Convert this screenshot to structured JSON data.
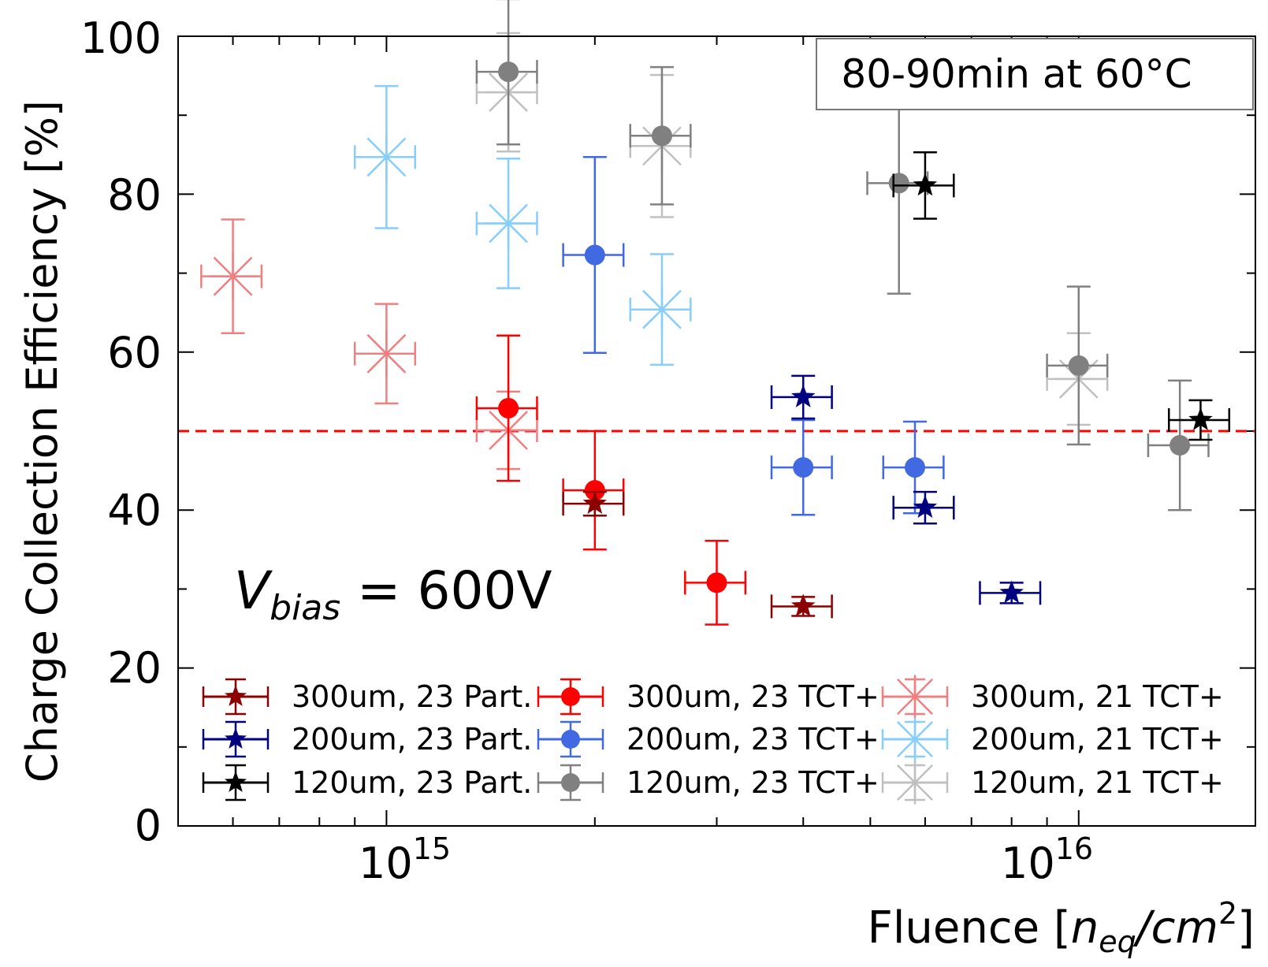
{
  "chart_data": {
    "type": "scatter",
    "xscale": "log",
    "xlim": [
      500000000000000.0,
      1.8e+16
    ],
    "ylim": [
      0,
      100
    ],
    "xlabel": "Fluence [n_eq/cm^2]",
    "xlabel_parts": {
      "prefix": "Fluence [",
      "n": "n",
      "n_sub": "eq",
      "slash": "/",
      "cm": "cm",
      "cm_sup": "2",
      "suffix": "]"
    },
    "ylabel": "Charge Collection Efficiency [%]",
    "yticks": [
      0,
      20,
      40,
      60,
      80,
      100
    ],
    "ytick_labels": [
      "0",
      "20",
      "40",
      "60",
      "80",
      "100"
    ],
    "xtick_labels": [
      {
        "value": 1000000000000000.0,
        "base": "10",
        "exp": "15"
      },
      {
        "value": 1e+16,
        "base": "10",
        "exp": "16"
      }
    ],
    "reference_line": {
      "y": 50,
      "color": "#ff0000",
      "style": "dashed"
    },
    "annotation_box": "80-90min at 60°C",
    "bias_label": {
      "v": "V",
      "sub": "bias",
      "rest": " = 600V"
    },
    "series": [
      {
        "name": "300um, 23 Part.",
        "color": "#8b0000",
        "marker": "star",
        "points": [
          {
            "x": 2000000000000000.0,
            "y": 40.8,
            "xerr": 0.1,
            "yerr": 1.5
          },
          {
            "x": 4000000000000000.0,
            "y": 27.8,
            "xerr": 0.1,
            "yerr": 1.2
          }
        ]
      },
      {
        "name": "200um, 23 Part.",
        "color": "#000080",
        "marker": "star",
        "points": [
          {
            "x": 4000000000000000.0,
            "y": 54.3,
            "xerr": 0.1,
            "yerr": 2.7
          },
          {
            "x": 6000000000000000.0,
            "y": 40.3,
            "xerr": 0.1,
            "yerr": 2.0
          },
          {
            "x": 8000000000000000.0,
            "y": 29.5,
            "xerr": 0.1,
            "yerr": 1.3
          }
        ]
      },
      {
        "name": "120um, 23 Part.",
        "color": "#000000",
        "marker": "star",
        "points": [
          {
            "x": 6000000000000000.0,
            "y": 81.1,
            "xerr": 0.1,
            "yerr": 4.2
          },
          {
            "x": 1.5e+16,
            "y": 51.4,
            "xerr": 0.1,
            "yerr": 2.5
          }
        ]
      },
      {
        "name": "300um, 23 TCT+",
        "color": "#ff0000",
        "marker": "circle",
        "points": [
          {
            "x": 1500000000000000.0,
            "y": 52.9,
            "xerr": 0.1,
            "yerr": 9.2
          },
          {
            "x": 2000000000000000.0,
            "y": 42.5,
            "xerr": 0.1,
            "yerr": 7.5
          },
          {
            "x": 3000000000000000.0,
            "y": 30.8,
            "xerr": 0.1,
            "yerr": 5.3
          }
        ]
      },
      {
        "name": "200um, 23 TCT+",
        "color": "#4169e1",
        "marker": "circle",
        "points": [
          {
            "x": 2000000000000000.0,
            "y": 72.3,
            "xerr": 0.1,
            "yerr": 12.4
          },
          {
            "x": 4000000000000000.0,
            "y": 45.4,
            "xerr": 0.1,
            "yerr": 6.0
          },
          {
            "x": 5800000000000000.0,
            "y": 45.4,
            "xerr": 0.1,
            "yerr": 5.8
          }
        ]
      },
      {
        "name": "120um, 23 TCT+",
        "color": "#808080",
        "marker": "circle",
        "points": [
          {
            "x": 1500000000000000.0,
            "y": 95.5,
            "xerr": 0.1,
            "yerr": 9.2
          },
          {
            "x": 2500000000000000.0,
            "y": 87.4,
            "xerr": 0.1,
            "yerr": 8.7
          },
          {
            "x": 5500000000000000.0,
            "y": 81.4,
            "xerr": 0.1,
            "yerr": 14.0
          },
          {
            "x": 1e+16,
            "y": 58.3,
            "xerr": 0.1,
            "yerr": 10.0
          },
          {
            "x": 1.4e+16,
            "y": 48.2,
            "xerr": 0.1,
            "yerr": 8.2
          }
        ]
      },
      {
        "name": "300um, 21 TCT+",
        "color": "#f08080",
        "marker": "xbox",
        "points": [
          {
            "x": 600000000000000.0,
            "y": 69.6,
            "xerr": 0.1,
            "yerr": 7.2
          },
          {
            "x": 1000000000000000.0,
            "y": 59.8,
            "xerr": 0.1,
            "yerr": 6.3
          },
          {
            "x": 1500000000000000.0,
            "y": 50.1,
            "xerr": 0.1,
            "yerr": 4.9
          }
        ]
      },
      {
        "name": "200um, 21 TCT+",
        "color": "#87cefa",
        "marker": "xbox",
        "points": [
          {
            "x": 1000000000000000.0,
            "y": 84.7,
            "xerr": 0.1,
            "yerr": 9.0
          },
          {
            "x": 1500000000000000.0,
            "y": 76.3,
            "xerr": 0.1,
            "yerr": 8.2
          },
          {
            "x": 2500000000000000.0,
            "y": 65.4,
            "xerr": 0.1,
            "yerr": 7.0
          }
        ]
      },
      {
        "name": "120um, 21 TCT+",
        "color": "#c0c0c0",
        "marker": "xbox",
        "points": [
          {
            "x": 1500000000000000.0,
            "y": 92.9,
            "xerr": 0.1,
            "yerr": 7.5
          },
          {
            "x": 2500000000000000.0,
            "y": 86.1,
            "xerr": 0.1,
            "yerr": 9.0
          },
          {
            "x": 1e+16,
            "y": 56.6,
            "xerr": 0.1,
            "yerr": 5.8
          }
        ]
      }
    ],
    "legend": {
      "placement": "lower center",
      "columns": 3
    }
  }
}
